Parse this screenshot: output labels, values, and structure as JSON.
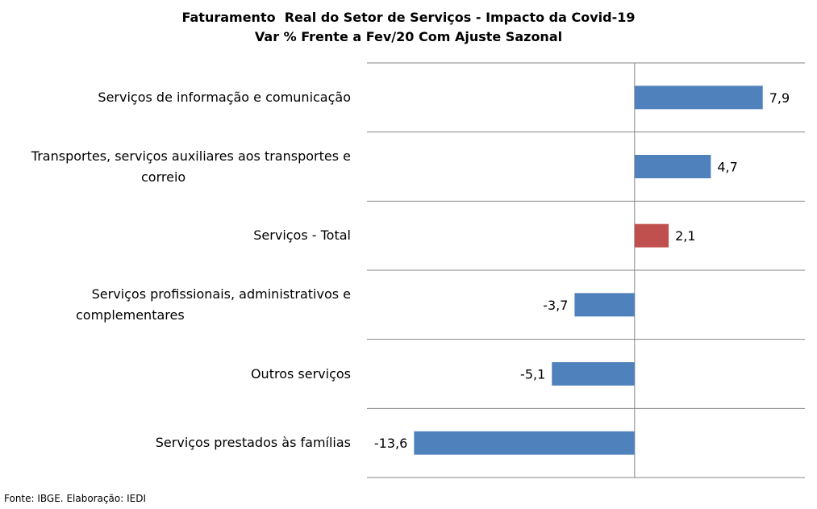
{
  "chart_data": {
    "type": "bar",
    "orientation": "horizontal",
    "title": "Faturamento  Real do Setor de Serviços - Impacto da Covid-19",
    "subtitle": "Var % Frente a Fev/20 Com Ajuste Sazonal",
    "categories": [
      "Serviços de informação e comunicação",
      "Transportes, serviços auxiliares aos transportes e correio",
      "Serviços - Total",
      "Serviços profissionais, administrativos e complementares",
      "Outros serviços",
      "Serviços prestados às famílias"
    ],
    "category_lines": [
      [
        "Serviços de informação e comunicação"
      ],
      [
        "Transportes, serviços auxiliares aos transportes e",
        "correio"
      ],
      [
        "Serviços - Total"
      ],
      [
        "Serviços profissionais, administrativos e",
        "complementares"
      ],
      [
        "Outros serviços"
      ],
      [
        "Serviços prestados às famílias"
      ]
    ],
    "values": [
      7.9,
      4.7,
      2.1,
      -3.7,
      -5.1,
      -13.6
    ],
    "data_labels": [
      "7,9",
      "4,7",
      "2,1",
      "-3,7",
      "-5,1",
      "-13,6"
    ],
    "colors": [
      "#4f81bd",
      "#4f81bd",
      "#c0504d",
      "#4f81bd",
      "#4f81bd",
      "#4f81bd"
    ],
    "xlim": [
      -16.5,
      10.5
    ],
    "gridlines": "horizontal category separators",
    "legend": "none"
  },
  "footer": "Fonte: IBGE. Elaboração: IEDI"
}
